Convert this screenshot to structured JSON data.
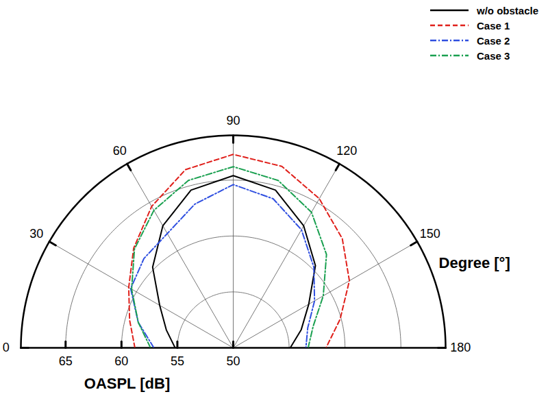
{
  "chart_data": {
    "type": "polar_line",
    "x_label": "Degree [°]",
    "y_label": "OASPL [dB]",
    "x": [
      0,
      15,
      30,
      45,
      60,
      75,
      90,
      105,
      120,
      135,
      150,
      165,
      180
    ],
    "xlim": [
      0,
      180
    ],
    "xticks": [
      0,
      30,
      60,
      90,
      120,
      150,
      180
    ],
    "ylim": [
      50,
      69
    ],
    "yticks": [
      50,
      55,
      60,
      65
    ],
    "grid": true,
    "legend": "top right",
    "series": [
      {
        "name": "w/o obstacle",
        "color": "#000000",
        "line_style": "solid",
        "values": [
          55.2,
          56.2,
          57.6,
          60.2,
          62.6,
          64.6,
          65.4,
          64.6,
          62.6,
          60.4,
          57.8,
          56.3,
          55.1
        ]
      },
      {
        "name": "Case 1",
        "color": "#e0201b",
        "line_style": "dashed",
        "values": [
          58.8,
          59.6,
          60.8,
          62.6,
          64.6,
          66.5,
          67.3,
          66.8,
          65.4,
          63.8,
          62.0,
          59.9,
          58.3
        ]
      },
      {
        "name": "Case 2",
        "color": "#2f4fe0",
        "line_style": "dashdot",
        "values": [
          57.1,
          58.8,
          60.6,
          61.3,
          61.8,
          63.3,
          64.6,
          63.8,
          62.2,
          60.2,
          58.4,
          56.9,
          56.5
        ]
      },
      {
        "name": "Case 3",
        "color": "#1aa050",
        "line_style": "dashdot",
        "values": [
          57.4,
          58.8,
          60.5,
          62.5,
          64.2,
          65.5,
          66.2,
          65.5,
          64.0,
          61.8,
          59.3,
          57.4,
          56.7
        ]
      }
    ]
  }
}
